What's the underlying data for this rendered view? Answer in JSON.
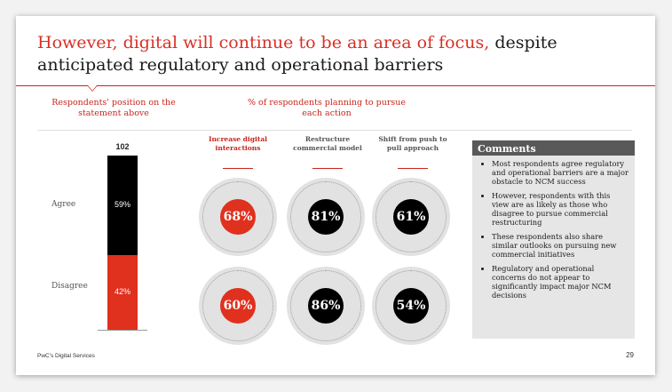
{
  "slide": {
    "title_red": "However, digital will continue to be an area of focus,",
    "title_black": " despite anticipated regulatory and operational barriers",
    "header_left": "Respondents' position on the statement above",
    "header_mid": "% of respondents planning to pursue each action"
  },
  "chart_data": {
    "type": "bar",
    "total_label": "102",
    "categories": [
      "Agree",
      "Disagree"
    ],
    "values": [
      59,
      42
    ],
    "value_labels": [
      "59%",
      "42%"
    ],
    "colors": [
      "#000000",
      "#e0301e"
    ]
  },
  "actions": {
    "columns": [
      {
        "label": "Increase digital interactions",
        "accent": true
      },
      {
        "label": "Restructure commercial model",
        "accent": false
      },
      {
        "label": "Shift from push to pull approach",
        "accent": false
      }
    ],
    "rows": [
      {
        "row": "Agree",
        "values": [
          "68%",
          "81%",
          "61%"
        ]
      },
      {
        "row": "Disagree",
        "values": [
          "60%",
          "86%",
          "54%"
        ]
      }
    ]
  },
  "comments": {
    "title": "Comments",
    "items": [
      "Most respondents agree regulatory and operational barriers are a major obstacle to NCM success",
      "However, respondents with this view are as likely as those who disagree to pursue commercial restructuring",
      "These respondents also share similar outlooks on pursuing new commercial initiatives",
      "Regulatory and operational concerns do not appear to significantly impact major NCM decisions"
    ]
  },
  "footer": {
    "left": "PwC's Digital Services",
    "page": "29"
  },
  "colors": {
    "accent_red": "#e0301e",
    "dark": "#000000",
    "comments_header": "#595959",
    "comments_bg": "#e6e6e6"
  }
}
